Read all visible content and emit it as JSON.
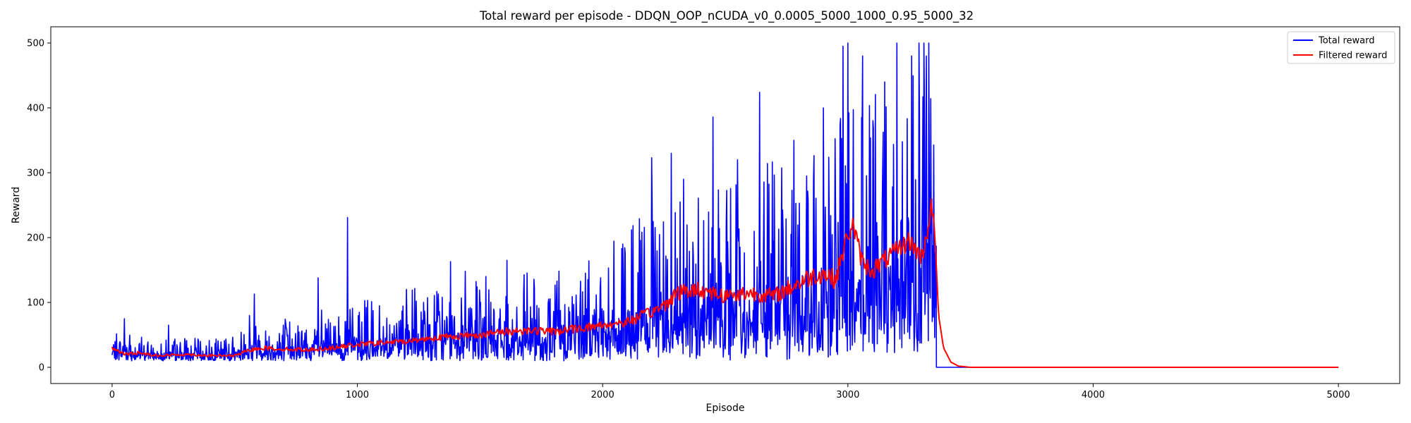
{
  "chart_data": {
    "type": "line",
    "title": "Total reward per episode - DDQN_OOP_nCUDA_v0_0.0005_5000_1000_0.95_5000_32",
    "xlabel": "Episode",
    "ylabel": "Reward",
    "xlim": [
      -250,
      5250
    ],
    "ylim": [
      -25,
      525
    ],
    "xticks": [
      0,
      1000,
      2000,
      3000,
      4000,
      5000
    ],
    "yticks": [
      0,
      100,
      200,
      300,
      400,
      500
    ],
    "grid": false,
    "legend_position": "upper right",
    "series": [
      {
        "name": "Total reward",
        "color": "#0000ff",
        "type": "noisy_envelope",
        "x": [
          0,
          50,
          100,
          200,
          300,
          400,
          500,
          600,
          700,
          800,
          900,
          1000,
          1100,
          1200,
          1300,
          1400,
          1500,
          1600,
          1700,
          1800,
          1900,
          2000,
          2100,
          2200,
          2300,
          2400,
          2500,
          2600,
          2700,
          2800,
          2900,
          3000,
          3100,
          3200,
          3300,
          3340,
          3360,
          3361,
          5000
        ],
        "y_low": [
          12,
          10,
          10,
          10,
          10,
          10,
          10,
          10,
          10,
          10,
          10,
          10,
          10,
          10,
          10,
          10,
          10,
          10,
          10,
          10,
          10,
          10,
          10,
          10,
          10,
          10,
          10,
          12,
          12,
          12,
          15,
          15,
          20,
          20,
          25,
          40,
          40,
          0,
          0
        ],
        "y_high": [
          45,
          70,
          50,
          45,
          45,
          45,
          50,
          80,
          75,
          85,
          95,
          100,
          115,
          120,
          125,
          135,
          140,
          145,
          150,
          155,
          170,
          190,
          210,
          250,
          270,
          290,
          300,
          310,
          320,
          340,
          370,
          400,
          420,
          450,
          480,
          500,
          500,
          0,
          0
        ],
        "spikes": [
          {
            "x": 50,
            "y": 75
          },
          {
            "x": 230,
            "y": 65
          },
          {
            "x": 560,
            "y": 80
          },
          {
            "x": 580,
            "y": 113
          },
          {
            "x": 840,
            "y": 138
          },
          {
            "x": 960,
            "y": 231
          },
          {
            "x": 1380,
            "y": 163
          },
          {
            "x": 1440,
            "y": 148
          },
          {
            "x": 1610,
            "y": 165
          },
          {
            "x": 2200,
            "y": 323
          },
          {
            "x": 2280,
            "y": 330
          },
          {
            "x": 2330,
            "y": 290
          },
          {
            "x": 2450,
            "y": 386
          },
          {
            "x": 2550,
            "y": 320
          },
          {
            "x": 2640,
            "y": 424
          },
          {
            "x": 2780,
            "y": 350
          },
          {
            "x": 2900,
            "y": 400
          },
          {
            "x": 2980,
            "y": 495
          },
          {
            "x": 3000,
            "y": 500
          },
          {
            "x": 3060,
            "y": 480
          },
          {
            "x": 3150,
            "y": 440
          },
          {
            "x": 3200,
            "y": 500
          },
          {
            "x": 3260,
            "y": 480
          },
          {
            "x": 3290,
            "y": 500
          },
          {
            "x": 3310,
            "y": 500
          },
          {
            "x": 3330,
            "y": 500
          },
          {
            "x": 3345,
            "y": 500
          },
          {
            "x": 3355,
            "y": 500
          }
        ]
      },
      {
        "name": "Filtered reward",
        "color": "#ff0000",
        "type": "line",
        "x": [
          0,
          50,
          100,
          200,
          300,
          400,
          500,
          550,
          600,
          700,
          800,
          900,
          1000,
          1100,
          1200,
          1300,
          1400,
          1500,
          1600,
          1700,
          1800,
          1900,
          2000,
          2100,
          2200,
          2250,
          2300,
          2400,
          2500,
          2600,
          2700,
          2800,
          2850,
          2900,
          2950,
          3000,
          3020,
          3060,
          3100,
          3200,
          3250,
          3300,
          3320,
          3340,
          3355,
          3370,
          3390,
          3420,
          3450,
          3500,
          4000,
          5000
        ],
        "y": [
          30,
          20,
          22,
          18,
          20,
          18,
          18,
          25,
          30,
          28,
          27,
          30,
          35,
          38,
          40,
          45,
          48,
          50,
          55,
          57,
          55,
          60,
          65,
          70,
          85,
          95,
          115,
          120,
          110,
          115,
          110,
          130,
          140,
          145,
          135,
          205,
          220,
          160,
          150,
          180,
          195,
          170,
          200,
          250,
          200,
          80,
          30,
          8,
          2,
          0,
          0,
          0
        ]
      }
    ]
  }
}
